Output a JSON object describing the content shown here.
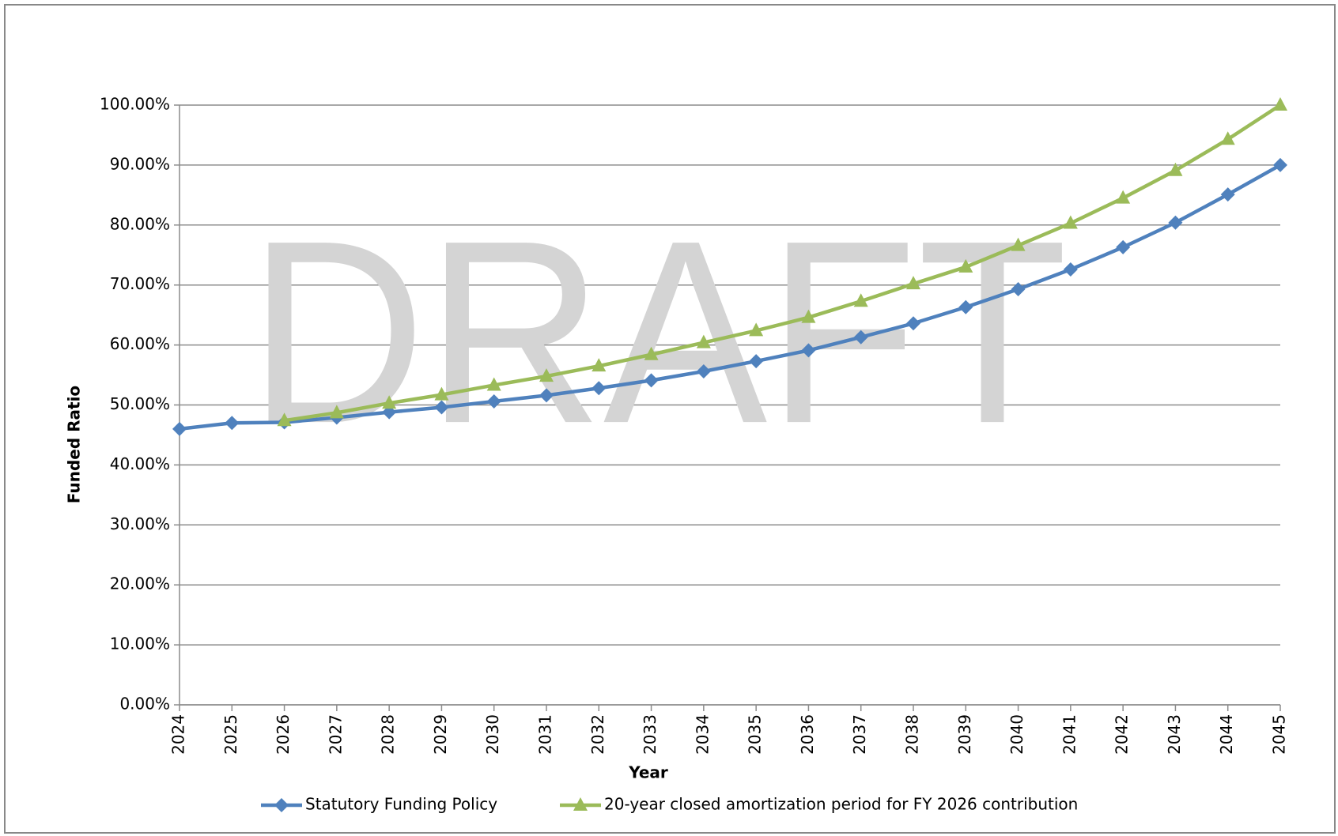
{
  "chart_data": {
    "type": "line",
    "watermark": "DRAFT",
    "y_label": "Funded Ratio",
    "x_label": "Year",
    "categories": [
      "2024",
      "2025",
      "2026",
      "2027",
      "2028",
      "2029",
      "2030",
      "2031",
      "2032",
      "2033",
      "2034",
      "2035",
      "2036",
      "2037",
      "2038",
      "2039",
      "2040",
      "2041",
      "2042",
      "2043",
      "2044",
      "2045"
    ],
    "series": [
      {
        "name": "Statutory Funding Policy",
        "color": "#4f81bd",
        "marker": "diamond",
        "values": [
          46.0,
          47.0,
          47.1,
          47.9,
          48.8,
          49.6,
          50.6,
          51.6,
          52.8,
          54.1,
          55.6,
          57.3,
          59.1,
          61.3,
          63.6,
          66.3,
          69.3,
          72.6,
          76.3,
          80.4,
          85.1,
          90.0
        ]
      },
      {
        "name": "20-year closed amortization period for FY 2026 contribution",
        "color": "#9bbb59",
        "marker": "triangle",
        "values": [
          null,
          null,
          47.4,
          48.7,
          50.3,
          51.7,
          53.3,
          54.8,
          56.5,
          58.4,
          60.4,
          62.4,
          64.6,
          67.3,
          70.2,
          73.0,
          76.6,
          80.3,
          84.5,
          89.1,
          94.3,
          100.0
        ]
      }
    ],
    "ylim": [
      0,
      100
    ],
    "yticks": [
      {
        "value": 0,
        "label": "0.00%"
      },
      {
        "value": 10,
        "label": "10.00%"
      },
      {
        "value": 20,
        "label": "20.00%"
      },
      {
        "value": 30,
        "label": "30.00%"
      },
      {
        "value": 40,
        "label": "40.00%"
      },
      {
        "value": 50,
        "label": "50.00%"
      },
      {
        "value": 60,
        "label": "60.00%"
      },
      {
        "value": 70,
        "label": "70.00%"
      },
      {
        "value": 80,
        "label": "80.00%"
      },
      {
        "value": 90,
        "label": "90.00%"
      },
      {
        "value": 100,
        "label": "100.00%"
      }
    ],
    "grid": true,
    "legend": "bottom"
  }
}
